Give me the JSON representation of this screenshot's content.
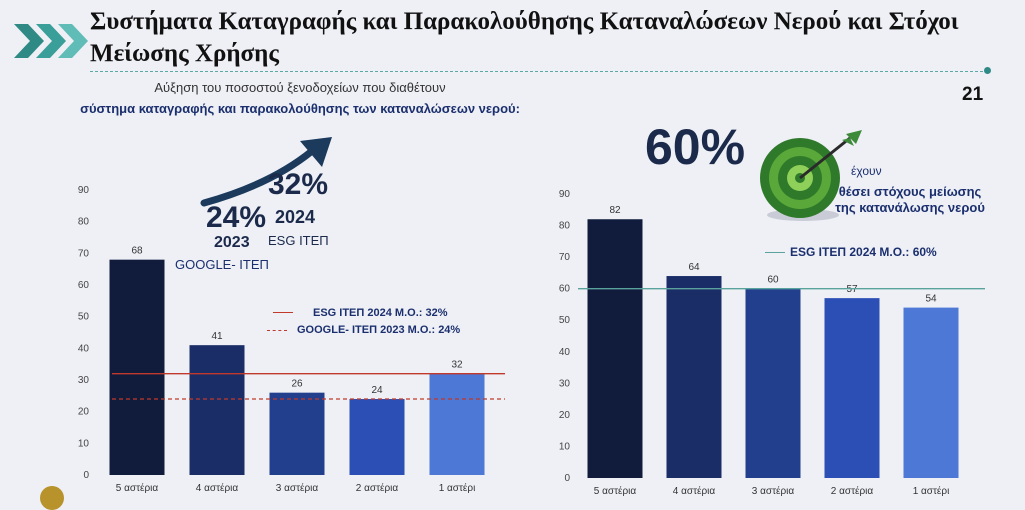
{
  "title": "Συστήματα Καταγραφής και Παρακολούθησης Καταναλώσεων Νερού και Στόχοι Μείωσης Χρήσης",
  "page_number": "21",
  "left_panel": {
    "subtitle_line1": "Αύξηση του ποσοστού ξενοδοχείων που διαθέτουν",
    "subtitle_line2": "σύστημα καταγραφής και παρακολούθησης των καταναλώσεων νερού:",
    "pct_2024": "32%",
    "year_2024": "2024",
    "source_2024": "ESG ΙΤΕΠ",
    "pct_2023": "24%",
    "year_2023": "2023",
    "source_2023": "GOOGLE- ΙΤΕΠ",
    "legend_esg": "ESG ΙΤΕΠ 2024  Μ.Ο.: 32%",
    "legend_google": "GOOGLE- ΙΤΕΠ 2023  Μ.Ο.: 24%"
  },
  "right_panel": {
    "pct": "60%",
    "have_text": "έχουν",
    "goal_text": "θέσει στόχους μείωσης της κατανάλωσης νερού",
    "legend_esg": "ESG ΙΤΕΠ 2024  Μ.Ο.: 60%"
  },
  "colors": {
    "bar1": "#111c3c",
    "bar2": "#1a2d66",
    "bar3": "#223f8e",
    "bar4": "#2c4fb5",
    "bar5": "#4d78d6",
    "ref_red": "#c0392b",
    "ref_green": "#5aa39c",
    "accent_teal": "#2f8a86"
  },
  "chart_data": [
    {
      "type": "bar",
      "categories": [
        "5 αστέρια",
        "4 αστέρια",
        "3 αστέρια",
        "2 αστέρια",
        "1 αστέρι"
      ],
      "values": [
        68,
        41,
        26,
        24,
        32
      ],
      "ylim": [
        0,
        90
      ],
      "yticks": [
        0,
        10,
        20,
        30,
        40,
        50,
        60,
        70,
        80,
        90
      ],
      "reference_lines": [
        {
          "value": 32,
          "style": "solid",
          "label": "ESG ΙΤΕΠ 2024  Μ.Ο.: 32%"
        },
        {
          "value": 24,
          "style": "dashed",
          "label": "GOOGLE- ΙΤΕΠ 2023  Μ.Ο.: 24%"
        }
      ],
      "grid": false
    },
    {
      "type": "bar",
      "categories": [
        "5 αστέρια",
        "4 αστέρια",
        "3 αστέρια",
        "2 αστέρια",
        "1 αστέρι"
      ],
      "values": [
        82,
        64,
        60,
        57,
        54
      ],
      "ylim": [
        0,
        90
      ],
      "yticks": [
        0,
        10,
        20,
        30,
        40,
        50,
        60,
        70,
        80,
        90
      ],
      "reference_lines": [
        {
          "value": 60,
          "style": "solid",
          "label": "ESG ΙΤΕΠ 2024  Μ.Ο.: 60%"
        }
      ],
      "grid": false
    }
  ]
}
